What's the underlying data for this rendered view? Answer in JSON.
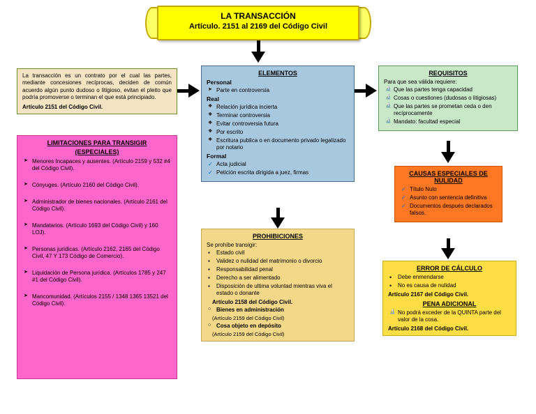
{
  "title": {
    "main": "LA TRANSACCIÓN",
    "sub": "Artículo. 2151 al 2169 del Código Civil"
  },
  "definicion": {
    "text": "La transacción es un contrato por el cual las partes, mediante concesiones recíprocas, deciden de común acuerdo algún punto dudoso o litigioso, evitan el pleito que podría promoverse o terminan el que está principiado.",
    "ref": "Artículo 2151 del Código Civil.",
    "bg": "#f4e4c4",
    "border": "#6b8e23"
  },
  "elementos": {
    "heading": "ELEMENTOS",
    "groups": [
      {
        "title": "Personal",
        "type": "arrow",
        "items": [
          "Parte en controversia"
        ]
      },
      {
        "title": "Real",
        "type": "diamond",
        "items": [
          "Relación jurídica incierta",
          "Terminar controversia",
          "Evitar controversia futura",
          "Por escrito",
          "Escritura publica o en documento privado legalizado por notario"
        ]
      },
      {
        "title": "Formal",
        "type": "check",
        "items": [
          "Acta judicial",
          "Petición escrita dirigida a juez, firmas"
        ]
      }
    ],
    "bg": "#a8c8e0",
    "border": "#4a6a8a"
  },
  "requisitos": {
    "heading": "REQUISITOS",
    "intro": "Para que sea válida requiere:",
    "items": [
      "Que las partes tenga capacidad",
      "Cosas o cuestiones (dudosas o litigiosas)",
      "Que las partes se prometan ceda o den recíprocamente",
      "Mandato: facultad especial"
    ],
    "bg": "#c8e8c8",
    "border": "#5a9a5a"
  },
  "limitaciones": {
    "heading": "LIMITACIONES PARA TRANSIGIR",
    "sub": "(ESPECIALES)",
    "items": [
      "Menores Incapaces y ausentes. (Artículo 2159 y 532 #4 del Código Civil).",
      "Cónyuges. (Artículo 2160 del Código Civil).",
      "Administrador de bienes nacionales. (Artículo 2161 del Código Civil).",
      "Mandatarios. (Artículo 1693 del Código Civil) y 160 LOJ).",
      "Personas jurídicas. (Artículo 2162, 2165 del Código Civil, 47 Y 173 Código de Comercio).",
      "Liquidación de Persona jurídica. (Artículos 1785 y 247 #1 del Código Civil).",
      "Mancomunidad. (Artículos 2155 / 1348 1365 13521 del Código Civil)."
    ],
    "bg": "#ff66cc",
    "border": "#cc3399"
  },
  "prohibiciones": {
    "heading": "PROHIBICIONES",
    "intro": "Se prohíbe transigir:",
    "items": [
      "Estado civil",
      "Validez o nulidad del matrimonio o divorcio",
      "Responsabilidad penal",
      "Derecho a ser alimentado",
      "Disposición de ultima voluntad mientras viva el estado o donante"
    ],
    "ref1": "Artículo 2158 del Código Civil.",
    "sub1": "Bienes en administración",
    "ref2": "(Artículo 2159 del Código Civil)",
    "sub2": "Cosa objeto en depósito",
    "ref3": "(Artículo 2159 del Código Civil)",
    "bg": "#f4d88a",
    "border": "#c4a850"
  },
  "causas": {
    "heading": "CAUSAS ESPECIALES DE NULIDAD",
    "items": [
      "Título Nulo",
      "Asunto con sentencia definitiva",
      "Documentos después declarados falsos."
    ],
    "bg": "#ff7722",
    "border": "#cc5500"
  },
  "error": {
    "heading": "ERROR DE CÁLCULO",
    "items": [
      "Debe enmendarse",
      "No es causa de nulidad"
    ],
    "ref1": "Artículo 2167 del Código Civil.",
    "heading2": "PENA ADICIONAL",
    "items2": [
      "No podrá exceder de la QUINTA parte del valor de la cosa."
    ],
    "ref2": "Artículo 2168 del Código Civil.",
    "bg": "#ffdd44",
    "border": "#ccaa22"
  },
  "colors": {
    "arrow": "#000000"
  }
}
